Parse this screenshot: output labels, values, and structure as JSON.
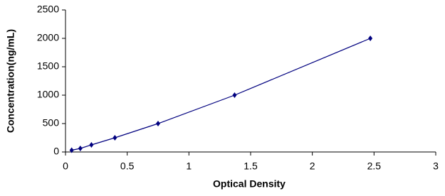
{
  "chart_data": {
    "type": "scatter",
    "x_label": "Optical Density",
    "y_label": "Concentration(ng/mL)",
    "series": [
      {
        "color": "#00007f",
        "x": [
          0.05,
          0.12,
          0.21,
          0.4,
          0.75,
          1.37,
          2.47
        ],
        "values": [
          31.25,
          62.5,
          125,
          250,
          500,
          1000,
          2000
        ]
      }
    ],
    "line": true,
    "xlim": [
      0,
      3
    ],
    "xticks": [
      0,
      0.5,
      1,
      1.5,
      2,
      2.5,
      3
    ],
    "ylim": [
      0,
      2500
    ],
    "yticks": [
      0,
      500,
      1000,
      1500,
      2000,
      2500
    ]
  }
}
